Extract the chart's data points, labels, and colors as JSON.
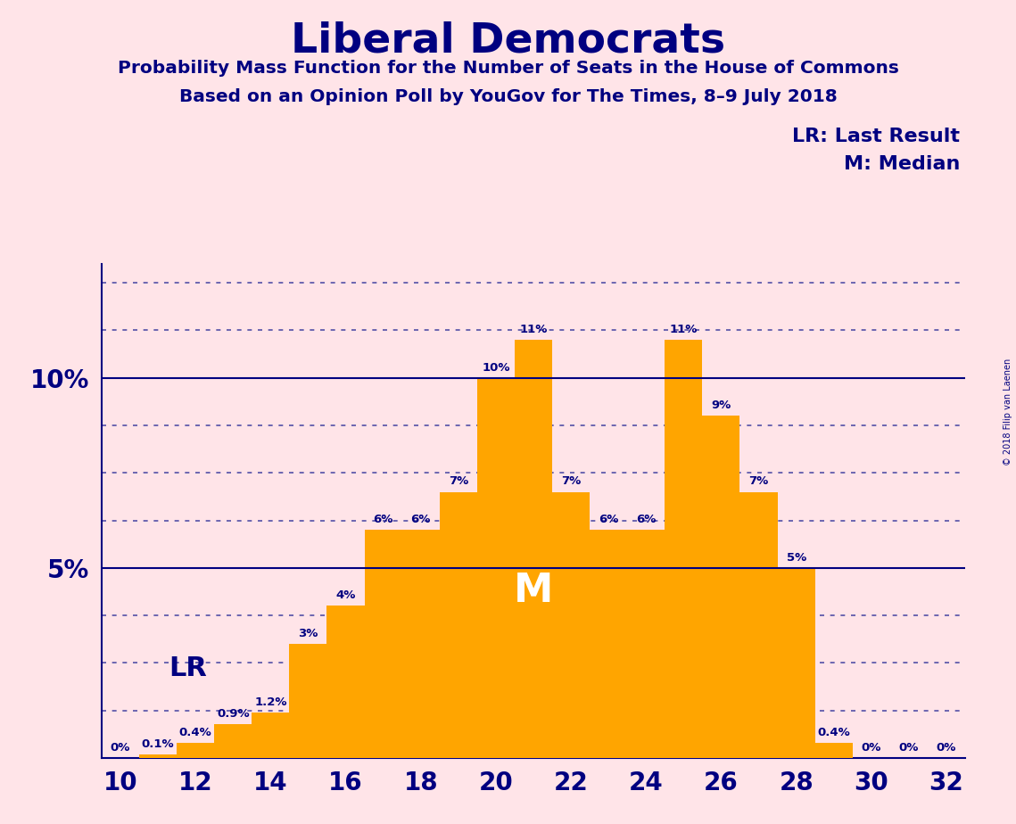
{
  "title": "Liberal Democrats",
  "subtitle1": "Probability Mass Function for the Number of Seats in the House of Commons",
  "subtitle2": "Based on an Opinion Poll by YouGov for The Times, 8–9 July 2018",
  "copyright": "© 2018 Filip van Laenen",
  "categories": [
    10,
    11,
    12,
    13,
    14,
    15,
    16,
    17,
    18,
    19,
    20,
    21,
    22,
    23,
    24,
    25,
    26,
    27,
    28,
    29,
    30,
    31,
    32
  ],
  "values": [
    0.0,
    0.1,
    0.4,
    0.9,
    1.2,
    3.0,
    4.0,
    6.0,
    6.0,
    7.0,
    10.0,
    11.0,
    7.0,
    6.0,
    6.0,
    11.0,
    9.0,
    7.0,
    5.0,
    0.4,
    0.0,
    0.0,
    0.0
  ],
  "labels": [
    "0%",
    "0.1%",
    "0.4%",
    "0.9%",
    "1.2%",
    "3%",
    "4%",
    "6%",
    "6%",
    "7%",
    "10%",
    "11%",
    "7%",
    "6%",
    "6%",
    "11%",
    "9%",
    "7%",
    "5%",
    "0.4%",
    "0%",
    "0%",
    "0%"
  ],
  "bar_color": "#FFA500",
  "background_color": "#FFE4E8",
  "title_color": "#000080",
  "label_color": "#000080",
  "axis_color": "#000080",
  "grid_color": "#4040A0",
  "median_seat": 21,
  "lr_seat": 12,
  "ylim_max": 13.0,
  "solid_lines": [
    5.0,
    10.0
  ],
  "dotted_lines": [
    1.25,
    2.5,
    3.75,
    6.25,
    7.5,
    8.75,
    11.25,
    12.5
  ],
  "xtick_positions": [
    10,
    12,
    14,
    16,
    18,
    20,
    22,
    24,
    26,
    28,
    30,
    32
  ],
  "legend_lr": "LR: Last Result",
  "legend_m": "M: Median",
  "lr_label": "LR",
  "m_label": "M"
}
